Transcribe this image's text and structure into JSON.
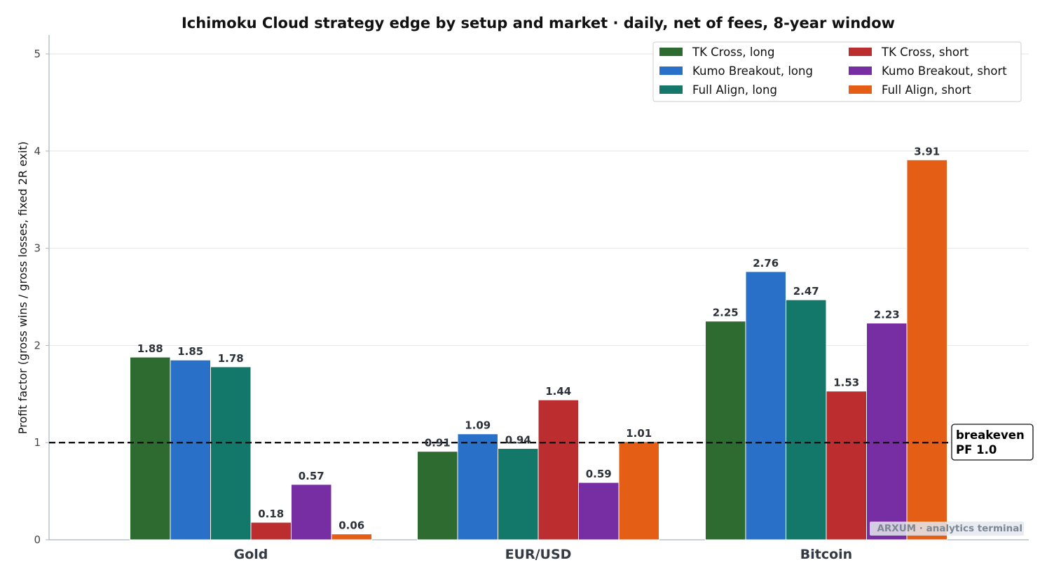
{
  "chart_data": {
    "type": "bar",
    "title": "Ichimoku Cloud strategy edge by setup and market · daily, net of fees, 8-year window",
    "xlabel": "",
    "ylabel": "Profit factor (gross wins / gross losses, fixed 2R exit)",
    "ylim": [
      0,
      5.2
    ],
    "yticks": [
      "0",
      "1",
      "2",
      "3",
      "4",
      "5"
    ],
    "grid": "horizontal",
    "legend_placement": "top-right",
    "categories": [
      "Gold",
      "EUR/USD",
      "Bitcoin"
    ],
    "series": [
      {
        "name": "TK Cross, long",
        "color": "#2e6b30",
        "values": [
          1.88,
          0.91,
          2.25
        ],
        "labels": [
          "1.88",
          "0.91",
          "2.25"
        ]
      },
      {
        "name": "Kumo Breakout, long",
        "color": "#2870c8",
        "values": [
          1.85,
          1.09,
          2.76
        ],
        "labels": [
          "1.85",
          "1.09",
          "2.76"
        ]
      },
      {
        "name": "Full Align, long",
        "color": "#13786a",
        "values": [
          1.78,
          0.94,
          2.47
        ],
        "labels": [
          "1.78",
          "0.94",
          "2.47"
        ]
      },
      {
        "name": "TK Cross, short",
        "color": "#bb2d2f",
        "values": [
          0.18,
          1.44,
          1.53
        ],
        "labels": [
          "0.18",
          "1.44",
          "1.53"
        ]
      },
      {
        "name": "Kumo Breakout, short",
        "color": "#782ea3",
        "values": [
          0.57,
          0.59,
          2.23
        ],
        "labels": [
          "0.57",
          "0.59",
          "2.23"
        ]
      },
      {
        "name": "Full Align, short",
        "color": "#e55e15",
        "values": [
          0.06,
          1.01,
          3.91
        ],
        "labels": [
          "0.06",
          "1.01",
          "3.91"
        ]
      }
    ],
    "reference_line": {
      "value": 1.0,
      "style": "dashed",
      "color": "#111111"
    },
    "annotation": {
      "line1": "breakeven",
      "line2": "PF 1.0"
    },
    "watermark": "ARXUM · analytics terminal"
  }
}
